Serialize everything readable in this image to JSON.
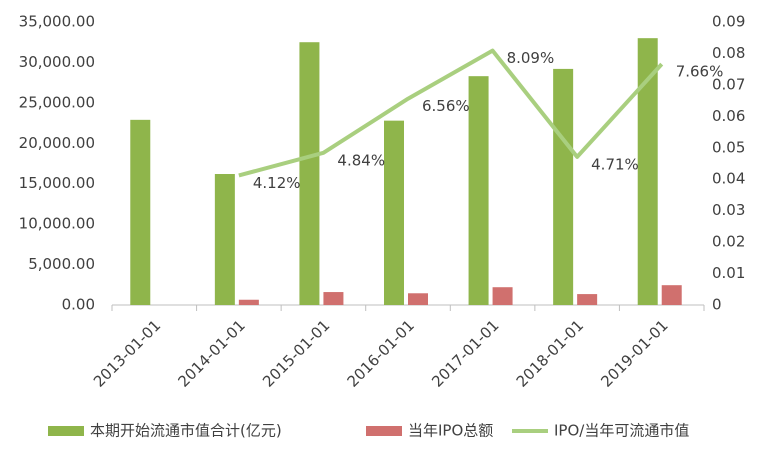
{
  "chart_data": {
    "type": "bar",
    "categories": [
      "2013-01-01",
      "2014-01-01",
      "2015-01-01",
      "2016-01-01",
      "2017-01-01",
      "2018-01-01",
      "2019-01-01"
    ],
    "series": [
      {
        "name": "本期开始流通市值合计(亿元)",
        "color": "#8fb54b",
        "type": "bar",
        "axis": "y",
        "values": [
          22900,
          16200,
          32500,
          22800,
          28300,
          29200,
          33000
        ]
      },
      {
        "name": "当年IPO总额",
        "color": "#d0706e",
        "type": "bar",
        "axis": "y",
        "values": [
          null,
          650,
          1600,
          1450,
          2200,
          1350,
          2450
        ]
      },
      {
        "name": "IPO/当年可流通市值",
        "color": "#a9cf7f",
        "type": "line",
        "axis": "y2",
        "values": [
          null,
          0.0412,
          0.0484,
          0.0656,
          0.0809,
          0.0471,
          0.0766
        ],
        "value_labels": [
          null,
          "4.12%",
          "4.84%",
          "6.56%",
          "8.09%",
          "4.71%",
          "7.66%"
        ]
      }
    ],
    "ylim": [
      0,
      35000
    ],
    "yticks": [
      {
        "value": 0,
        "label": "0.00"
      },
      {
        "value": 5000,
        "label": "5,000.00"
      },
      {
        "value": 10000,
        "label": "10,000.00"
      },
      {
        "value": 15000,
        "label": "15,000.00"
      },
      {
        "value": 20000,
        "label": "20,000.00"
      },
      {
        "value": 25000,
        "label": "25,000.00"
      },
      {
        "value": 30000,
        "label": "30,000.00"
      },
      {
        "value": 35000,
        "label": "35,000.00"
      }
    ],
    "y2lim": [
      0,
      0.09
    ],
    "y2ticks": [
      0,
      0.01,
      0.02,
      0.03,
      0.04,
      0.05,
      0.06,
      0.07,
      0.08,
      0.09
    ],
    "legend": "bottom"
  }
}
